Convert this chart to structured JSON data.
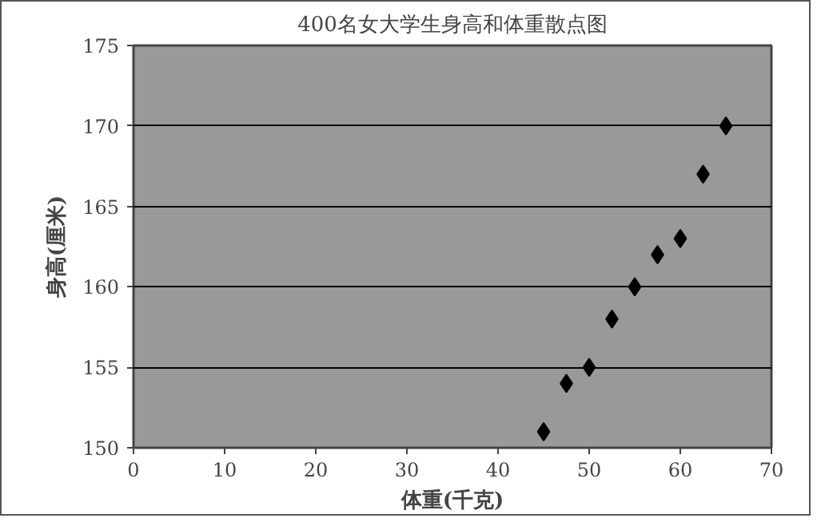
{
  "chart_data": {
    "type": "scatter",
    "title": "400名女大学生身高和体重散点图",
    "xlabel": "体重(千克)",
    "ylabel": "身高(厘米)",
    "x": [
      45,
      47.5,
      50,
      52.5,
      55,
      57.5,
      60,
      62.5,
      65
    ],
    "series": [
      {
        "color": "#000000",
        "values": [
          151,
          154,
          155,
          158,
          160,
          162,
          163,
          167,
          170
        ]
      }
    ],
    "xlim": [
      0,
      70
    ],
    "xticks": [
      0,
      10,
      20,
      30,
      40,
      50,
      60,
      70
    ],
    "ylim": [
      150,
      175
    ],
    "yticks": [
      150,
      155,
      160,
      165,
      170,
      175
    ],
    "grid": "y",
    "marker": "diamond"
  }
}
